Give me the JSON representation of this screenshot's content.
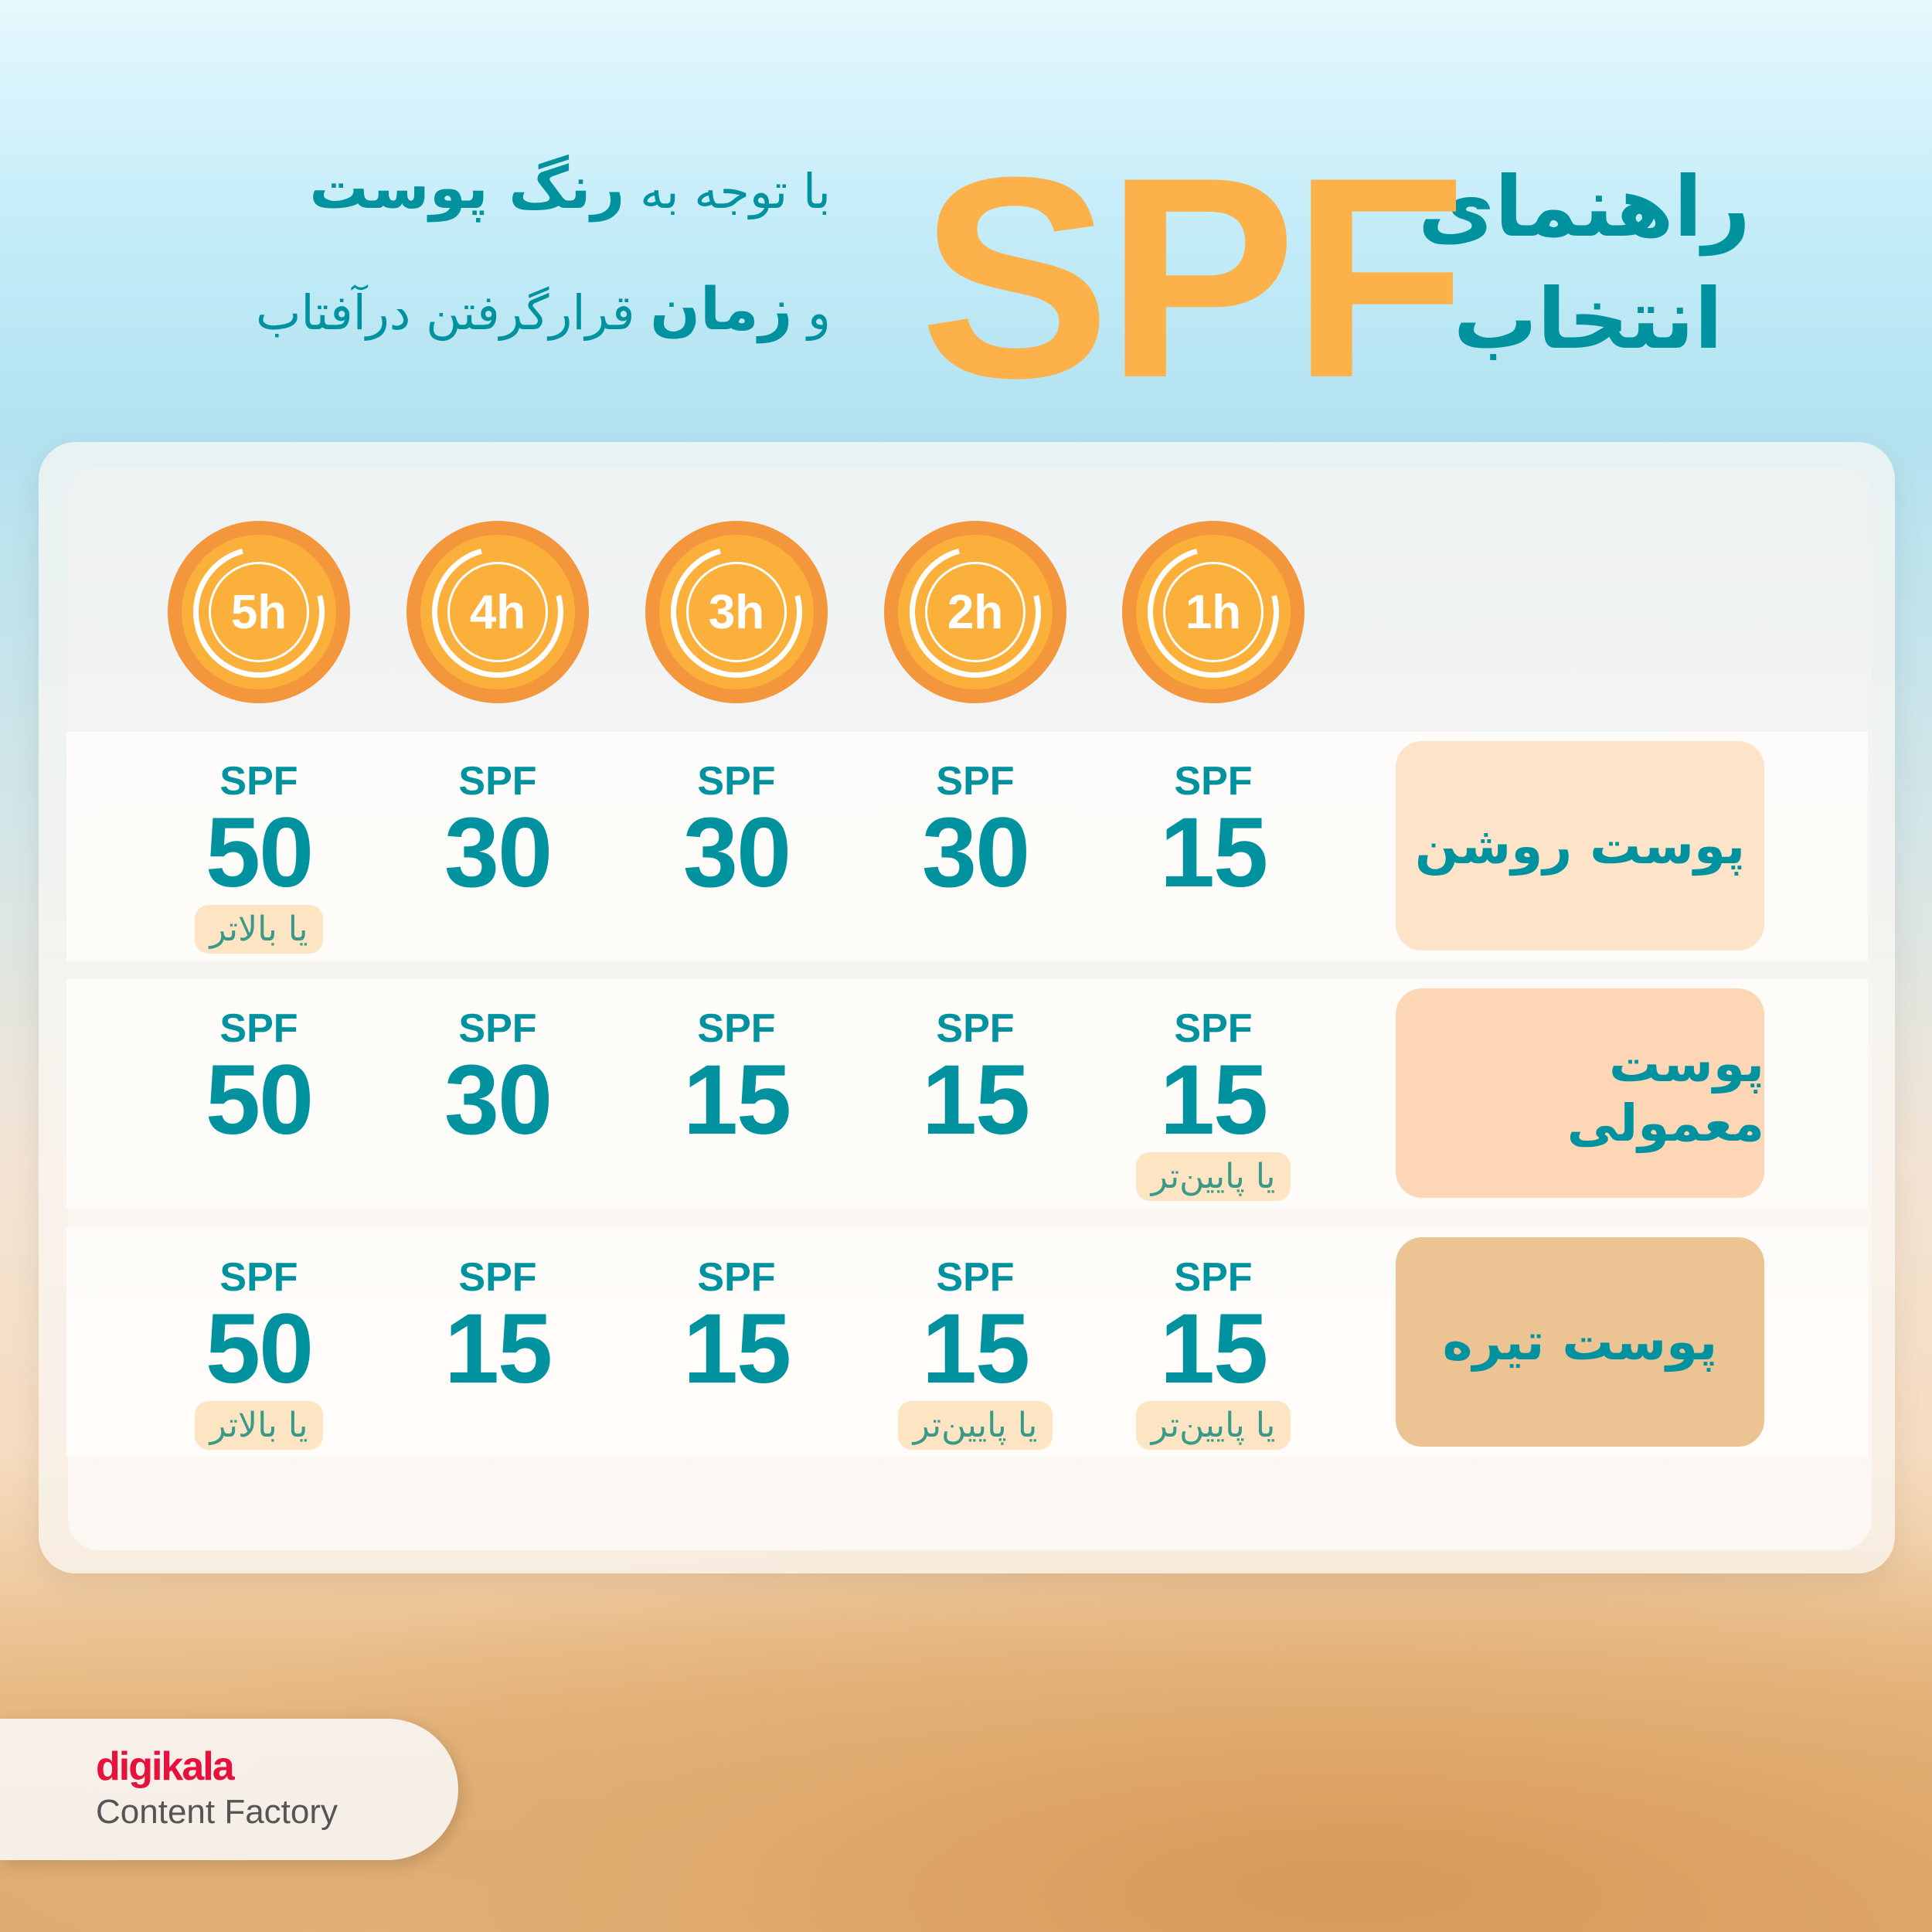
{
  "header": {
    "title_line1": "راهنمای",
    "title_line2": "انتخاب",
    "spf": "SPF",
    "subtitle_line1_pre": "با توجه به",
    "subtitle_line1_bold": "رنگ پوست",
    "subtitle_line2_pre": "و",
    "subtitle_line2_bold": "زمان",
    "subtitle_line2_post": "قرارگرفتن درآفتاب"
  },
  "colors": {
    "accent": "#00939f",
    "spf_orange": "#fdb14a",
    "clock": "#f3963c",
    "note_bg": "#fde4c2"
  },
  "table": {
    "hours": [
      "5h",
      "4h",
      "3h",
      "2h",
      "1h"
    ],
    "rows": [
      {
        "skin": "پوست روشن",
        "skin_bg": "#fde3c8",
        "cells": [
          {
            "label": "SPF",
            "value": "50",
            "note": "یا بالاتر"
          },
          {
            "label": "SPF",
            "value": "30",
            "note": ""
          },
          {
            "label": "SPF",
            "value": "30",
            "note": ""
          },
          {
            "label": "SPF",
            "value": "30",
            "note": ""
          },
          {
            "label": "SPF",
            "value": "15",
            "note": ""
          }
        ]
      },
      {
        "skin": "پوست معمولی",
        "skin_bg": "#fcd6b5",
        "cells": [
          {
            "label": "SPF",
            "value": "50",
            "note": ""
          },
          {
            "label": "SPF",
            "value": "30",
            "note": ""
          },
          {
            "label": "SPF",
            "value": "15",
            "note": ""
          },
          {
            "label": "SPF",
            "value": "15",
            "note": ""
          },
          {
            "label": "SPF",
            "value": "15",
            "note": "یا پایین‌تر"
          }
        ]
      },
      {
        "skin": "پوست تیره",
        "skin_bg": "#ecc493",
        "cells": [
          {
            "label": "SPF",
            "value": "50",
            "note": "یا بالاتر"
          },
          {
            "label": "SPF",
            "value": "15",
            "note": ""
          },
          {
            "label": "SPF",
            "value": "15",
            "note": ""
          },
          {
            "label": "SPF",
            "value": "15",
            "note": "یا پایین‌تر"
          },
          {
            "label": "SPF",
            "value": "15",
            "note": "یا پایین‌تر"
          }
        ]
      }
    ]
  },
  "logo": {
    "brand": "digikala",
    "tagline": "Content Factory"
  }
}
